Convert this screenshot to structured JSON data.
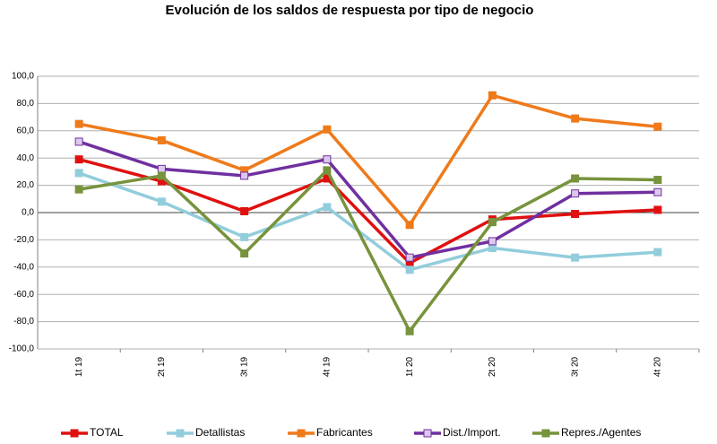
{
  "chart_data": {
    "type": "line",
    "title": "Evolución de los saldos de respuesta por tipo de negocio",
    "categories": [
      "1t 19",
      "2t 19",
      "3t 19",
      "4t 19",
      "1t 20",
      "2t 20",
      "3t 20",
      "4t 20"
    ],
    "series": [
      {
        "name": "TOTAL",
        "color": "#e01010",
        "values": [
          39,
          23,
          1,
          25,
          -37,
          -5,
          -1,
          2
        ]
      },
      {
        "name": "Detallistas",
        "color": "#92cddc",
        "values": [
          29,
          8,
          -18,
          4,
          -42,
          -26,
          -33,
          -29
        ]
      },
      {
        "name": "Fabricantes",
        "color": "#ef7a1a",
        "values": [
          65,
          53,
          31,
          61,
          -9,
          86,
          69,
          63
        ]
      },
      {
        "name": "Dist./Import.",
        "color": "#7030a0",
        "values": [
          52,
          32,
          27,
          39,
          -33,
          -21,
          14,
          15
        ]
      },
      {
        "name": "Repres./Agentes",
        "color": "#77933c",
        "values": [
          17,
          27,
          -30,
          31,
          -87,
          -7,
          25,
          24
        ]
      }
    ],
    "ylim": [
      -100,
      100
    ],
    "yticks": [
      {
        "value": -100,
        "label": "-100,0"
      },
      {
        "value": -80,
        "label": "-80,0"
      },
      {
        "value": -60,
        "label": "-60,0"
      },
      {
        "value": -40,
        "label": "-40,0"
      },
      {
        "value": -20,
        "label": "-20,0"
      },
      {
        "value": 0,
        "label": "0,0"
      },
      {
        "value": 20,
        "label": "20,0"
      },
      {
        "value": 40,
        "label": "40,0"
      },
      {
        "value": 60,
        "label": "60,0"
      },
      {
        "value": 80,
        "label": "80,0"
      },
      {
        "value": 100,
        "label": "100,0"
      }
    ],
    "grid": true,
    "legend": "bottom"
  }
}
